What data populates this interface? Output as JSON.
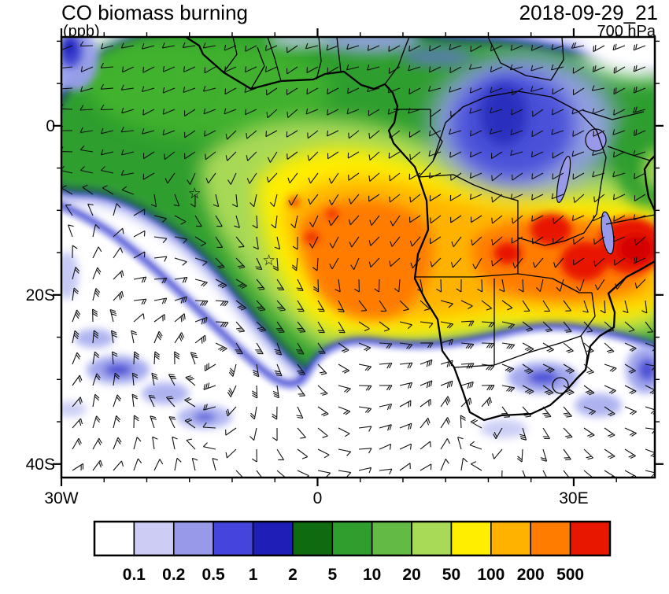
{
  "header": {
    "title": "CO biomass burning",
    "units": "(ppb)",
    "datetime": "2018-09-29_21",
    "level": "700 hPa"
  },
  "map": {
    "extent": {
      "lon_min": -30,
      "lon_max": 39.5,
      "lat_min": -41.6,
      "lat_max": 10.5
    },
    "x_ticks": [
      {
        "label": "30W",
        "lon": -30
      },
      {
        "label": "0",
        "lon": 0
      },
      {
        "label": "30E",
        "lon": 30
      }
    ],
    "y_ticks": [
      {
        "label": "0",
        "lat": 0
      },
      {
        "label": "20S",
        "lat": -20
      },
      {
        "label": "40S",
        "lat": -40
      }
    ],
    "minor_tick_deg": 5,
    "star_glyph": "☆",
    "star_markers": [
      {
        "lon": -14.4,
        "lat": -8.0
      },
      {
        "lon": -5.7,
        "lat": -15.9
      }
    ]
  },
  "colorbar": {
    "levels": [
      "0.1",
      "0.2",
      "0.5",
      "1",
      "2",
      "5",
      "10",
      "20",
      "50",
      "100",
      "200",
      "500"
    ],
    "colors": [
      "#ffffff",
      "#ccccf5",
      "#9999ea",
      "#4545dd",
      "#1f1fb8",
      "#0e6b10",
      "#2f9e2f",
      "#63bb45",
      "#a8d957",
      "#ffee00",
      "#ffb300",
      "#ff7c00",
      "#e81800"
    ]
  }
}
